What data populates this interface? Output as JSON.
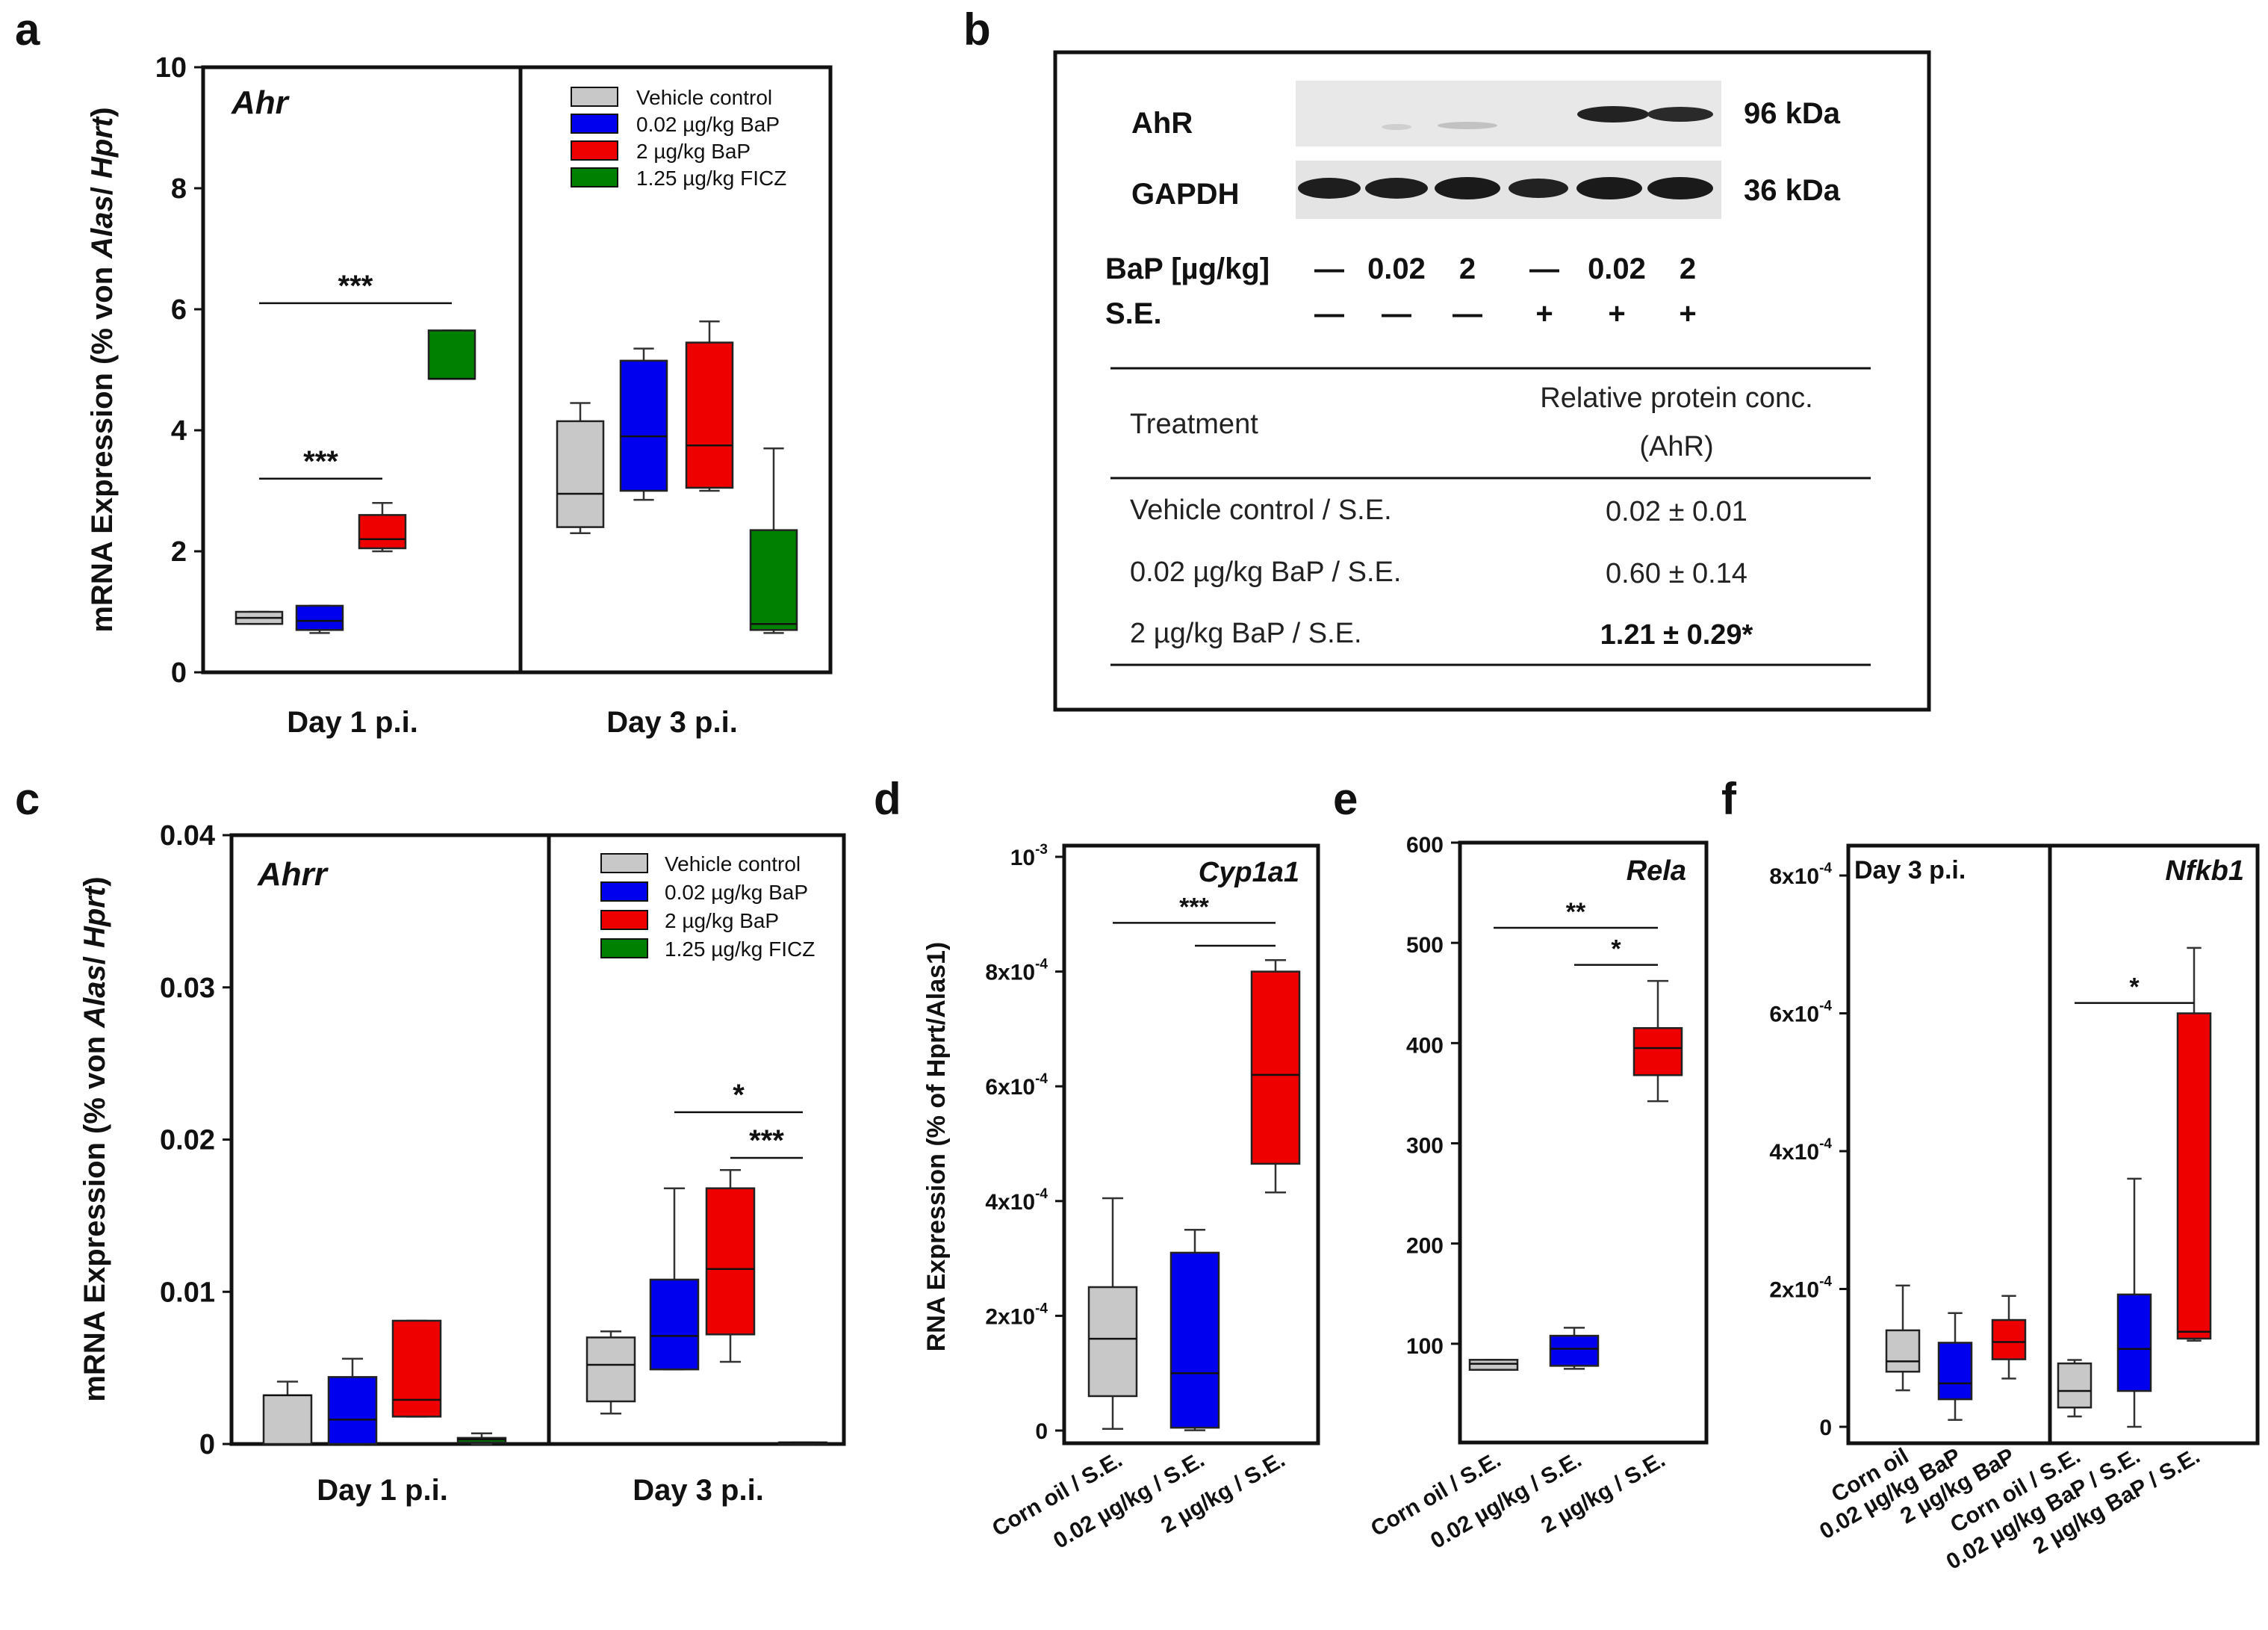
{
  "figure": {
    "panel_letters": [
      "a",
      "b",
      "c",
      "d",
      "e",
      "f"
    ],
    "colors": {
      "vehicle": "#c8c8c8",
      "bap_low": "#0000ee",
      "bap_high": "#ee0000",
      "ficz": "#008000"
    }
  },
  "legend_a": [
    {
      "label": "Vehicle control",
      "color": "#c8c8c8"
    },
    {
      "label": "0.02 µg/kg BaP",
      "color": "#0000ee"
    },
    {
      "label": "2 µg/kg BaP",
      "color": "#ee0000"
    },
    {
      "label": "1.25 µg/kg FICZ",
      "color": "#008000"
    }
  ],
  "legend_c": [
    {
      "label": "Vehicle control",
      "color": "#c8c8c8"
    },
    {
      "label": "0.02 µg/kg BaP",
      "color": "#0000ee"
    },
    {
      "label": "2 µg/kg BaP",
      "color": "#ee0000"
    },
    {
      "label": "1.25 µg/kg FICZ",
      "color": "#008000"
    }
  ],
  "western": {
    "rows": [
      {
        "label": "AhR",
        "kda": "96 kDa"
      },
      {
        "label": "GAPDH",
        "kda": "36 kDa"
      }
    ],
    "bap_header": "BaP [µg/kg]",
    "bap_values": [
      "—",
      "0.02",
      "2",
      "—",
      "0.02",
      "2"
    ],
    "se_header": "S.E.",
    "se_values": [
      "—",
      "—",
      "—",
      "+",
      "+",
      "+"
    ],
    "table": {
      "col1": "Treatment",
      "col2_line1": "Relative protein conc.",
      "col2_line2": "(AhR)",
      "rows": [
        {
          "treatment": "Vehicle control / S.E.",
          "value": "0.02 ± 0.01"
        },
        {
          "treatment": "0.02 µg/kg BaP / S.E.",
          "value": "0.60 ± 0.14"
        },
        {
          "treatment": "2 µg/kg BaP / S.E.",
          "value": "1.21 ± 0.29*"
        }
      ]
    }
  },
  "chart_data": [
    {
      "id": "a",
      "type": "box",
      "gene": "Ahr",
      "ylabel_parts": [
        "mRNA Expression (% von ",
        "Alas",
        "/ ",
        "Hprt",
        ")"
      ],
      "ylim": [
        0,
        10
      ],
      "yticks": [
        "0",
        "2",
        "4",
        "6",
        "8",
        "10"
      ],
      "groups": [
        "Day 1 p.i.",
        "Day 3 p.i."
      ],
      "series_names": [
        "Vehicle control",
        "0.02 µg/kg BaP",
        "2 µg/kg BaP",
        "1.25 µg/kg FICZ"
      ],
      "boxes": [
        {
          "group": 0,
          "series": 0,
          "min": 0.8,
          "q1": 0.8,
          "median": 0.9,
          "q3": 1.0,
          "max": 1.0
        },
        {
          "group": 0,
          "series": 1,
          "min": 0.65,
          "q1": 0.7,
          "median": 0.85,
          "q3": 1.1,
          "max": 1.1
        },
        {
          "group": 0,
          "series": 2,
          "min": 2.0,
          "q1": 2.05,
          "median": 2.2,
          "q3": 2.6,
          "max": 2.8
        },
        {
          "group": 0,
          "series": 3,
          "min": 4.85,
          "q1": 4.85,
          "median": 4.85,
          "q3": 5.65,
          "max": 5.65
        },
        {
          "group": 1,
          "series": 0,
          "min": 2.3,
          "q1": 2.4,
          "median": 2.95,
          "q3": 4.15,
          "max": 4.45
        },
        {
          "group": 1,
          "series": 1,
          "min": 2.85,
          "q1": 3.0,
          "median": 3.9,
          "q3": 5.15,
          "max": 5.35
        },
        {
          "group": 1,
          "series": 2,
          "min": 3.0,
          "q1": 3.05,
          "median": 3.75,
          "q3": 5.45,
          "max": 5.8
        },
        {
          "group": 1,
          "series": 3,
          "min": 0.65,
          "q1": 0.7,
          "median": 0.8,
          "q3": 2.35,
          "max": 3.7
        }
      ],
      "significance": [
        {
          "label": "***",
          "from": 0,
          "to": 3,
          "group": 0,
          "y": 6.1
        },
        {
          "label": "***",
          "from": 0,
          "to": 2,
          "group": 0,
          "y": 3.2
        }
      ]
    },
    {
      "id": "c",
      "type": "box",
      "gene": "Ahrr",
      "ylabel_parts": [
        "mRNA Expression (% von ",
        "Alas",
        "/ ",
        "Hprt",
        ")"
      ],
      "ylim": [
        0,
        0.04
      ],
      "yticks": [
        "0",
        "0.01",
        "0.02",
        "0.03",
        "0.04"
      ],
      "groups": [
        "Day 1 p.i.",
        "Day 3 p.i."
      ],
      "series_names": [
        "Vehicle control",
        "0.02 µg/kg BaP",
        "2 µg/kg BaP",
        "1.25 µg/kg FICZ"
      ],
      "boxes": [
        {
          "group": 0,
          "series": 0,
          "min": 0.0,
          "q1": 0.0,
          "median": 0.0032,
          "q3": 0.0032,
          "max": 0.0041
        },
        {
          "group": 0,
          "series": 1,
          "min": 0.0,
          "q1": 0.0,
          "median": 0.0016,
          "q3": 0.0044,
          "max": 0.0056
        },
        {
          "group": 0,
          "series": 2,
          "min": 0.0018,
          "q1": 0.0018,
          "median": 0.0029,
          "q3": 0.0081,
          "max": 0.0081
        },
        {
          "group": 0,
          "series": 3,
          "min": 0.0,
          "q1": 0.0001,
          "median": 0.0003,
          "q3": 0.0004,
          "max": 0.0007
        },
        {
          "group": 1,
          "series": 0,
          "min": 0.002,
          "q1": 0.0028,
          "median": 0.0052,
          "q3": 0.007,
          "max": 0.0074
        },
        {
          "group": 1,
          "series": 1,
          "min": 0.0049,
          "q1": 0.0049,
          "median": 0.0071,
          "q3": 0.0108,
          "max": 0.0168
        },
        {
          "group": 1,
          "series": 2,
          "min": 0.0054,
          "q1": 0.0072,
          "median": 0.0115,
          "q3": 0.0168,
          "max": 0.018
        },
        {
          "group": 1,
          "series": 3,
          "min": 0.0,
          "q1": 0.0,
          "median": 0.0001,
          "q3": 0.0001,
          "max": 0.0001
        }
      ],
      "significance": [
        {
          "label": "*",
          "from": 1,
          "to": 3,
          "group": 1,
          "y": 0.0218
        },
        {
          "label": "***",
          "from": 2,
          "to": 3,
          "group": 1,
          "y": 0.0188
        }
      ]
    },
    {
      "id": "d",
      "type": "box",
      "gene": "Cyp1a1",
      "ylabel": "RNA Expression (% of Hprt/Alas1)",
      "ylim": [
        0,
        0.001
      ],
      "yticks": [
        {
          "base": "0",
          "exp": ""
        },
        {
          "base": "2x10",
          "exp": "-4"
        },
        {
          "base": "4x10",
          "exp": "-4"
        },
        {
          "base": "6x10",
          "exp": "-4"
        },
        {
          "base": "8x10",
          "exp": "-4"
        },
        {
          "base": "10",
          "exp": "-3"
        }
      ],
      "categories": [
        "Corn oil / S.E.",
        "0.02 µg/kg / S.E.",
        "2 µg/kg / S.E."
      ],
      "boxes": [
        {
          "series": 0,
          "min": 3e-06,
          "q1": 6e-05,
          "median": 0.00016,
          "q3": 0.00025,
          "max": 0.000405
        },
        {
          "series": 1,
          "min": 5e-07,
          "q1": 5e-06,
          "median": 0.0001,
          "q3": 0.00031,
          "max": 0.00035
        },
        {
          "series": 2,
          "min": 0.000415,
          "q1": 0.000465,
          "median": 0.00062,
          "q3": 0.0008,
          "max": 0.00082
        }
      ],
      "significance": [
        {
          "label": "***",
          "from": 0,
          "to": 2,
          "y": 0.000885
        },
        {
          "label": "",
          "from": 1,
          "to": 2,
          "y": 0.000845
        }
      ]
    },
    {
      "id": "e",
      "type": "box",
      "gene": "Rela",
      "ylim": [
        0,
        600
      ],
      "yticks": [
        "100",
        "200",
        "300",
        "400",
        "500",
        "600"
      ],
      "categories": [
        "Corn oil / S.E.",
        "0.02 µg/kg / S.E.",
        "2 µg/kg / S.E."
      ],
      "boxes": [
        {
          "series": 0,
          "min": 74,
          "q1": 74,
          "median": 80,
          "q3": 84,
          "max": 84
        },
        {
          "series": 1,
          "min": 75,
          "q1": 78,
          "median": 95,
          "q3": 108,
          "max": 116
        },
        {
          "series": 2,
          "min": 342,
          "q1": 368,
          "median": 395,
          "q3": 415,
          "max": 462
        }
      ],
      "significance": [
        {
          "label": "**",
          "from": 0,
          "to": 2,
          "y": 515
        },
        {
          "label": "*",
          "from": 1,
          "to": 2,
          "y": 478
        }
      ]
    },
    {
      "id": "f",
      "type": "box",
      "gene": "Nfkb1",
      "title": "Day 3 p.i.",
      "ylim": [
        0,
        0.0008
      ],
      "yticks": [
        {
          "base": "0",
          "exp": ""
        },
        {
          "base": "2x10",
          "exp": "-4"
        },
        {
          "base": "4x10",
          "exp": "-4"
        },
        {
          "base": "6x10",
          "exp": "-4"
        },
        {
          "base": "8x10",
          "exp": "-4"
        }
      ],
      "categories": [
        "Corn oil",
        "0.02 µg/kg BaP",
        "2 µg/kg BaP",
        "Corn oil / S.E.",
        "0.02 µg/kg BaP / S.E.",
        "2 µg/kg BaP / S.E."
      ],
      "boxes": [
        {
          "series": 0,
          "min": 5.3e-05,
          "q1": 8e-05,
          "median": 9.5e-05,
          "q3": 0.00014,
          "max": 0.000205
        },
        {
          "series": 1,
          "min": 1e-05,
          "q1": 4e-05,
          "median": 6.3e-05,
          "q3": 0.000122,
          "max": 0.000165
        },
        {
          "series": 2,
          "min": 7e-05,
          "q1": 9.8e-05,
          "median": 0.000123,
          "q3": 0.000155,
          "max": 0.00019
        },
        {
          "series": 0,
          "min": 1.5e-05,
          "q1": 2.8e-05,
          "median": 5.2e-05,
          "q3": 9.2e-05,
          "max": 9.7e-05
        },
        {
          "series": 1,
          "min": 0.0,
          "q1": 5.2e-05,
          "median": 0.000113,
          "q3": 0.000192,
          "max": 0.00036
        },
        {
          "series": 2,
          "min": 0.000125,
          "q1": 0.000128,
          "median": 0.000138,
          "q3": 0.0006,
          "max": 0.000695
        }
      ],
      "significance": [
        {
          "label": "*",
          "from": 3,
          "to": 5,
          "y": 0.000615
        }
      ]
    }
  ]
}
